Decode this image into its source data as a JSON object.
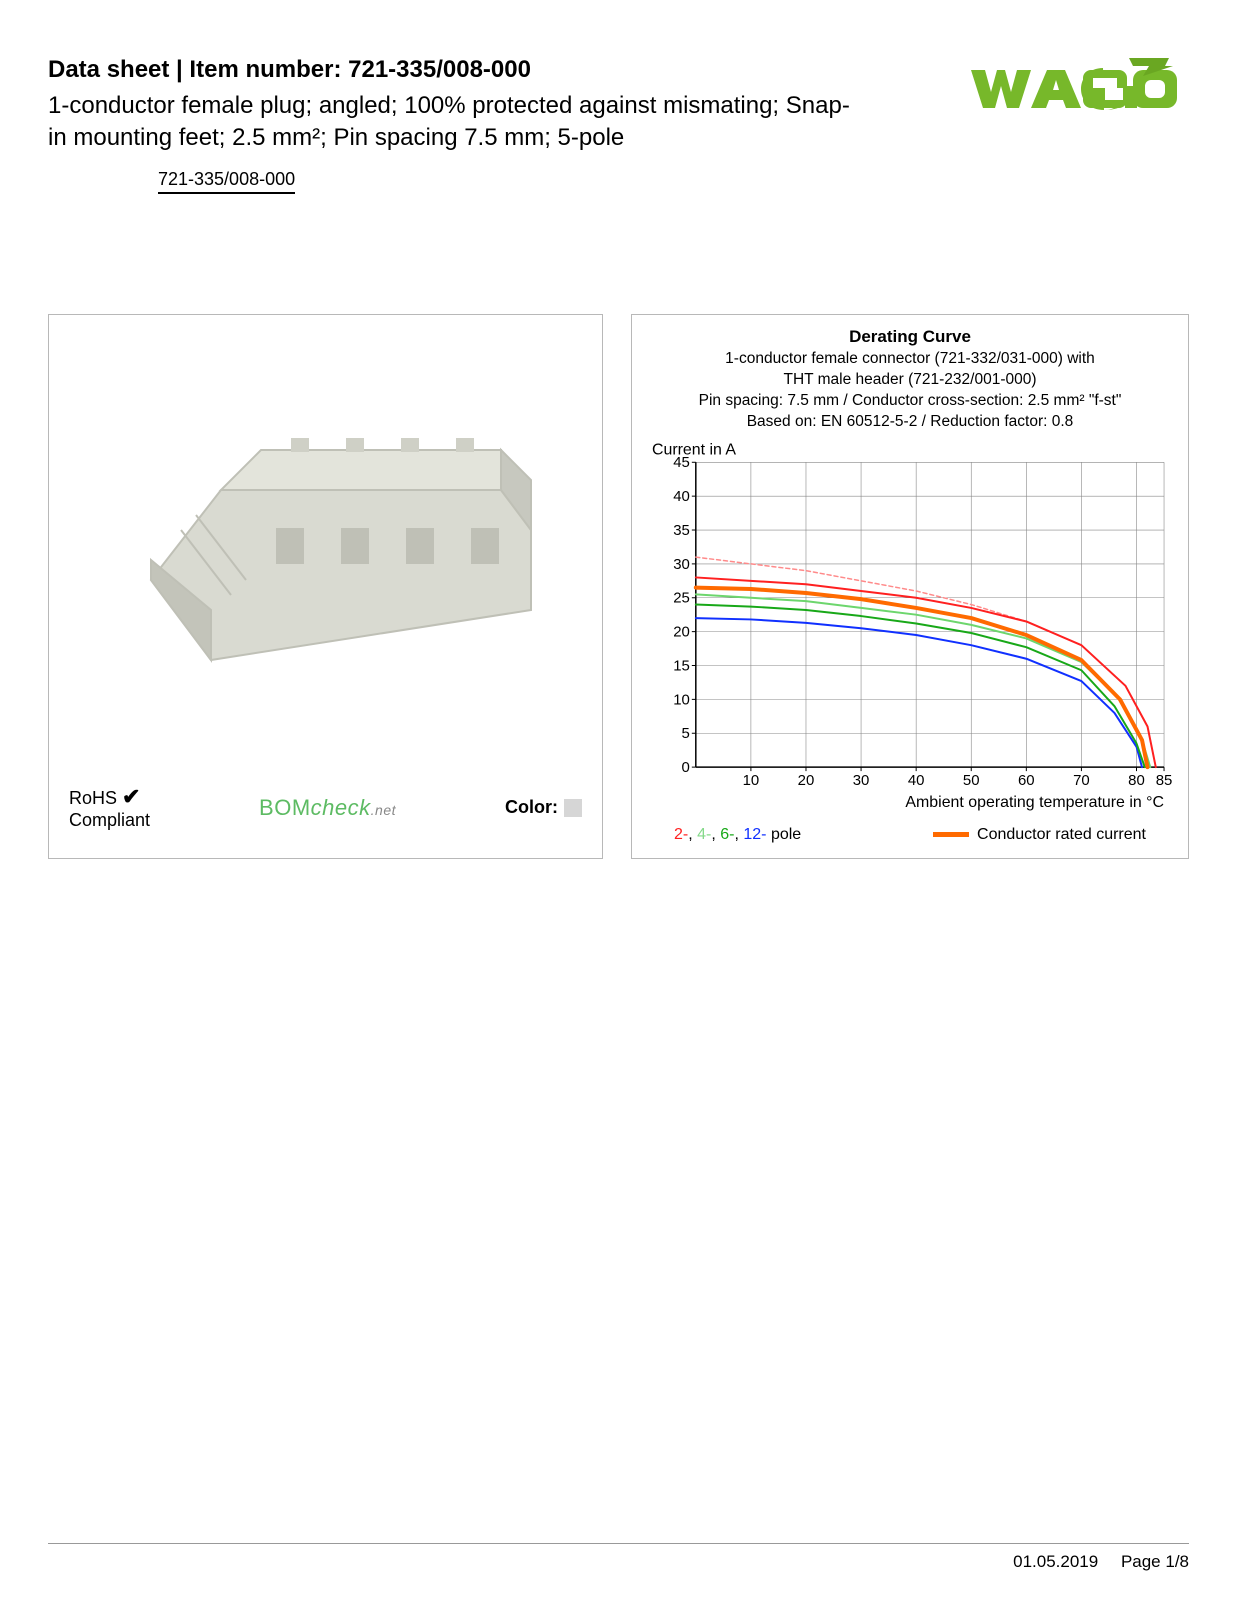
{
  "header": {
    "title_prefix": "Data sheet  |  Item number: ",
    "item_number": "721-335/008-000",
    "subtitle": "1-conductor female plug; angled; 100% protected against mismating; Snap-in mounting feet; 2.5 mm²; Pin spacing 7.5 mm; 5-pole",
    "item_tag": "721-335/008-000"
  },
  "logo": {
    "text": "WAGO",
    "fill": "#77b82a",
    "arrow": "#6aa722"
  },
  "left_panel": {
    "product_color": "#d9dad1",
    "product_shadow": "#bfc0b6",
    "rohs_label": "RoHS",
    "compliant_label": "Compliant",
    "checkmark": "✔",
    "bomcheck_prefix": "BOM",
    "bomcheck_mid": "check",
    "bomcheck_suffix": ".net",
    "color_label": "Color:",
    "color_swatch": "#d6d6d6"
  },
  "chart": {
    "title": "Derating Curve",
    "sub1": "1-conductor female connector (721-332/031-000) with",
    "sub2": "THT male header (721-232/001-000)",
    "sub3": "Pin spacing: 7.5 mm / Conductor cross-section: 2.5 mm² \"f-st\"",
    "sub4": "Based on: EN 60512-5-2 / Reduction factor: 0.8",
    "y_label": "Current in A",
    "x_label": "Ambient operating temperature in °C",
    "x_ticks": [
      10,
      20,
      30,
      40,
      50,
      60,
      70,
      80,
      85
    ],
    "y_ticks": [
      0,
      5,
      10,
      15,
      20,
      25,
      30,
      35,
      40,
      45
    ],
    "xlim": [
      0,
      85
    ],
    "ylim": [
      0,
      45
    ],
    "grid_color": "#888888",
    "axis_color": "#000000",
    "bg": "#ffffff",
    "series": {
      "pole2": {
        "color": "#ff2020",
        "width": 2,
        "points": [
          [
            0,
            28
          ],
          [
            10,
            27.5
          ],
          [
            20,
            27
          ],
          [
            30,
            26
          ],
          [
            40,
            25
          ],
          [
            50,
            23.5
          ],
          [
            60,
            21.5
          ],
          [
            70,
            18
          ],
          [
            78,
            12
          ],
          [
            82,
            6
          ],
          [
            83.5,
            0
          ]
        ]
      },
      "pole2d": {
        "color": "#ff8a8a",
        "width": 1.5,
        "dash": "4 3",
        "points": [
          [
            0,
            31
          ],
          [
            10,
            30
          ],
          [
            20,
            29
          ],
          [
            30,
            27.5
          ],
          [
            40,
            26
          ],
          [
            50,
            24
          ],
          [
            60,
            21.5
          ],
          [
            70,
            18
          ],
          [
            78,
            12
          ],
          [
            82,
            6
          ],
          [
            83.5,
            0
          ]
        ]
      },
      "pole4": {
        "color": "#6dd66d",
        "width": 2,
        "points": [
          [
            0,
            25.5
          ],
          [
            10,
            25
          ],
          [
            20,
            24.5
          ],
          [
            30,
            23.5
          ],
          [
            40,
            22.5
          ],
          [
            50,
            21
          ],
          [
            60,
            19
          ],
          [
            70,
            15.5
          ],
          [
            77,
            10
          ],
          [
            81,
            4
          ],
          [
            82.5,
            0
          ]
        ]
      },
      "pole6": {
        "color": "#18a818",
        "width": 2,
        "points": [
          [
            0,
            24
          ],
          [
            10,
            23.7
          ],
          [
            20,
            23.2
          ],
          [
            30,
            22.3
          ],
          [
            40,
            21.2
          ],
          [
            50,
            19.8
          ],
          [
            60,
            17.7
          ],
          [
            70,
            14.3
          ],
          [
            76,
            9
          ],
          [
            80,
            3.5
          ],
          [
            81.5,
            0
          ]
        ]
      },
      "pole12": {
        "color": "#1030ff",
        "width": 2,
        "points": [
          [
            0,
            22
          ],
          [
            10,
            21.8
          ],
          [
            20,
            21.3
          ],
          [
            30,
            20.5
          ],
          [
            40,
            19.5
          ],
          [
            50,
            18
          ],
          [
            60,
            16
          ],
          [
            70,
            12.7
          ],
          [
            76,
            8
          ],
          [
            80,
            3
          ],
          [
            81,
            0
          ]
        ]
      },
      "rated": {
        "color": "#ff6a00",
        "width": 4,
        "points": [
          [
            0,
            26.5
          ],
          [
            10,
            26.3
          ],
          [
            20,
            25.7
          ],
          [
            30,
            24.8
          ],
          [
            40,
            23.5
          ],
          [
            50,
            22
          ],
          [
            60,
            19.5
          ],
          [
            70,
            15.8
          ],
          [
            77,
            10
          ],
          [
            81,
            4
          ],
          [
            82,
            0
          ]
        ]
      }
    },
    "legend": {
      "p2": "2-",
      "p4": "4-",
      "p6": "6-",
      "p12": "12-",
      "pole_word": " pole",
      "rated": "Conductor rated current"
    },
    "tick_fontsize": 15,
    "label_fontsize": 16
  },
  "footer": {
    "date": "01.05.2019",
    "page": "Page 1/8"
  }
}
